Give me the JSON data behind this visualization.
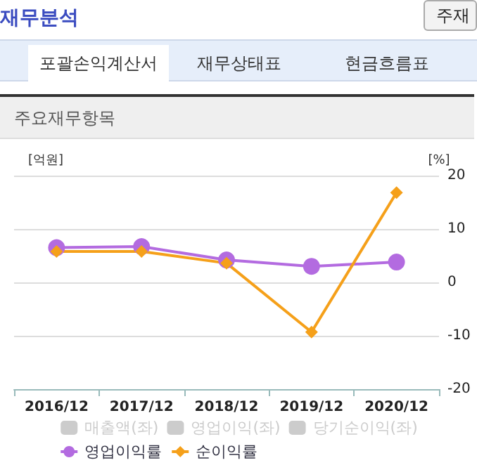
{
  "chart_data": {
    "type": "line",
    "annotations": [
      "재무분석",
      "주재",
      "포괄손익계산서",
      "재무상태표",
      "현금흐름표",
      "주요재무항목"
    ],
    "ylabel": "[억원]",
    "y2label": "[%]",
    "categories": [
      "2016/12",
      "2017/12",
      "2018/12",
      "2019/12",
      "2020/12"
    ],
    "y2lim": [
      -20,
      20
    ],
    "y2ticks": [
      -20,
      -10,
      0,
      10,
      20
    ],
    "grid": "y",
    "legend": "bottom",
    "series": [
      {
        "name": "매출액(좌)",
        "type": "bar",
        "color": "#cccccc",
        "values": [
          null,
          null,
          null,
          null,
          null
        ]
      },
      {
        "name": "영업이익(좌)",
        "type": "bar",
        "color": "#cccccc",
        "values": [
          null,
          null,
          null,
          null,
          null
        ]
      },
      {
        "name": "당기순이익(좌)",
        "type": "bar",
        "color": "#cccccc",
        "values": [
          null,
          null,
          null,
          null,
          null
        ]
      },
      {
        "name": "영업이익률",
        "axis": "y2",
        "marker": "circle",
        "color": "#b36be0",
        "values": [
          6.5,
          6.7,
          4.2,
          3.0,
          3.8
        ]
      },
      {
        "name": "순이익률",
        "axis": "y2",
        "marker": "diamond",
        "color": "#f5a01a",
        "values": [
          5.8,
          5.8,
          3.6,
          -9.3,
          16.8
        ]
      }
    ]
  }
}
